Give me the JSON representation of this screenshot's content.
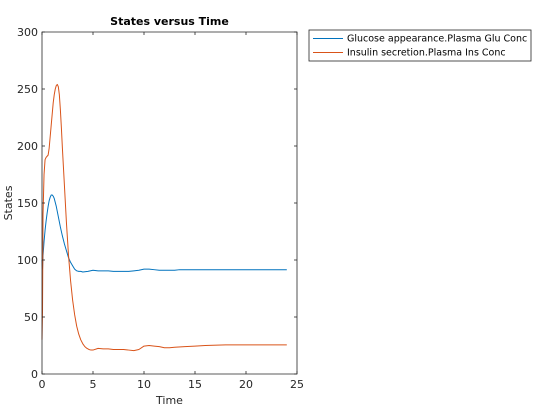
{
  "chart_data": {
    "type": "line",
    "title": "States versus Time",
    "xlabel": "Time",
    "ylabel": "States",
    "xlim": [
      0,
      25
    ],
    "ylim": [
      0,
      300
    ],
    "xticks": [
      0,
      5,
      10,
      15,
      20,
      25
    ],
    "yticks": [
      0,
      50,
      100,
      150,
      200,
      250,
      300
    ],
    "grid": false,
    "legend_position": "outside top-right",
    "series": [
      {
        "name": "Glucose appearance.Plasma Glu Conc",
        "color": "#0072BD",
        "x": [
          0,
          0.05,
          0.1,
          0.2,
          0.3,
          0.4,
          0.5,
          0.6,
          0.7,
          0.8,
          0.9,
          1.0,
          1.1,
          1.2,
          1.4,
          1.6,
          1.8,
          2.0,
          2.2,
          2.4,
          2.6,
          2.8,
          3.0,
          3.2,
          3.4,
          3.6,
          3.8,
          4.0,
          4.5,
          5.0,
          5.5,
          6.0,
          6.5,
          7.0,
          7.5,
          8.0,
          8.5,
          9.0,
          9.5,
          10.0,
          10.5,
          11.0,
          11.5,
          12.0,
          12.5,
          13.0,
          13.5,
          14.0,
          15.0,
          16.0,
          17.0,
          18.0,
          19.0,
          20.0,
          21.0,
          22.0,
          23.0,
          24.0
        ],
        "y": [
          100,
          92,
          104,
          116,
          126,
          134,
          141,
          147,
          152,
          155,
          157,
          157,
          156,
          154,
          147,
          138,
          129,
          121,
          114,
          108,
          102,
          98,
          95,
          92,
          90.5,
          90,
          90,
          89.5,
          90,
          91,
          90.5,
          90.5,
          90.5,
          90,
          90,
          90,
          90,
          90.5,
          91,
          92,
          92,
          91.5,
          91,
          91,
          91,
          91,
          91.5,
          91.5,
          91.5,
          91.5,
          91.5,
          91.5,
          91.5,
          91.5,
          91.5,
          91.5,
          91.5,
          91.5
        ]
      },
      {
        "name": "Insulin secretion.Plasma Ins Conc",
        "color": "#D95319",
        "x": [
          0,
          0.05,
          0.1,
          0.2,
          0.3,
          0.4,
          0.5,
          0.6,
          0.7,
          0.8,
          0.9,
          1.0,
          1.1,
          1.2,
          1.3,
          1.4,
          1.5,
          1.6,
          1.7,
          1.8,
          1.9,
          2.0,
          2.2,
          2.4,
          2.6,
          2.8,
          3.0,
          3.2,
          3.4,
          3.6,
          3.8,
          4.0,
          4.2,
          4.4,
          4.6,
          4.8,
          5.0,
          5.5,
          6.0,
          6.5,
          7.0,
          7.5,
          8.0,
          8.5,
          9.0,
          9.5,
          10.0,
          10.5,
          11.0,
          11.5,
          12.0,
          12.5,
          13.0,
          14.0,
          15.0,
          16.0,
          18.0,
          20.0,
          22.0,
          24.0
        ],
        "y": [
          30,
          55,
          140,
          175,
          188,
          190,
          191,
          192,
          198,
          208,
          218,
          228,
          238,
          245,
          250,
          253,
          254,
          252,
          245,
          232,
          216,
          198,
          165,
          132,
          104,
          82,
          65,
          52,
          42,
          35,
          30,
          26.5,
          24,
          22.5,
          21.5,
          21,
          21,
          22.5,
          22,
          22,
          21.5,
          21.5,
          21.5,
          21,
          20.5,
          21.5,
          24.5,
          25,
          24.5,
          24,
          23,
          23,
          23.5,
          24,
          24.5,
          25,
          25.5,
          25.5,
          25.5,
          25.5
        ]
      }
    ]
  }
}
